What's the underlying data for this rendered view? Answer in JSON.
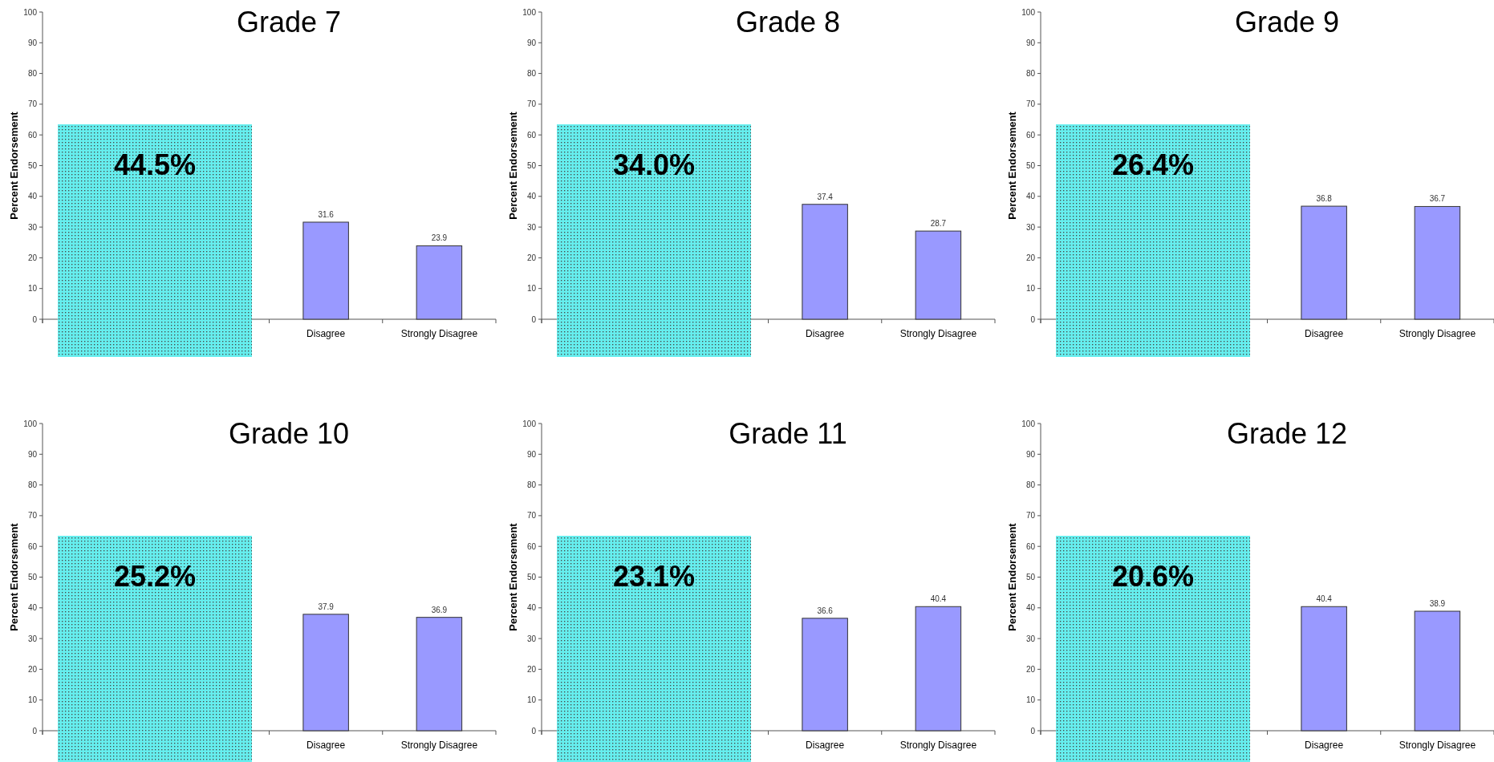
{
  "chart_data": [
    {
      "type": "bar",
      "title": "Grade 7",
      "ylabel": "Percent Endorsement",
      "categories": [
        null,
        null,
        "Disagree",
        "Strongly Disagree"
      ],
      "values": [
        null,
        null,
        31.6,
        23.9
      ],
      "color": "#9999ff",
      "ylim": [
        0,
        100
      ],
      "yticks": [
        0,
        10,
        20,
        30,
        40,
        50,
        60,
        70,
        80,
        90,
        100
      ],
      "data_labels": true,
      "grid": false,
      "annotations": [
        "44.5%"
      ]
    },
    {
      "type": "bar",
      "title": "Grade 8",
      "ylabel": "Percent Endorsement",
      "categories": [
        null,
        null,
        "Disagree",
        "Strongly Disagree"
      ],
      "values": [
        null,
        null,
        37.4,
        28.7
      ],
      "color": "#9999ff",
      "ylim": [
        0,
        100
      ],
      "yticks": [
        0,
        10,
        20,
        30,
        40,
        50,
        60,
        70,
        80,
        90,
        100
      ],
      "data_labels": true,
      "grid": false,
      "annotations": [
        "34.0%"
      ]
    },
    {
      "type": "bar",
      "title": "Grade 9",
      "ylabel": "Percent Endorsement",
      "categories": [
        null,
        null,
        "Disagree",
        "Strongly Disagree"
      ],
      "values": [
        null,
        null,
        36.8,
        36.7
      ],
      "color": "#9999ff",
      "ylim": [
        0,
        100
      ],
      "yticks": [
        0,
        10,
        20,
        30,
        40,
        50,
        60,
        70,
        80,
        90,
        100
      ],
      "data_labels": true,
      "grid": false,
      "annotations": [
        "26.4%"
      ]
    },
    {
      "type": "bar",
      "title": "Grade 10",
      "ylabel": "Percent Endorsement",
      "categories": [
        null,
        null,
        "Disagree",
        "Strongly Disagree"
      ],
      "values": [
        null,
        null,
        37.9,
        36.9
      ],
      "color": "#9999ff",
      "ylim": [
        0,
        100
      ],
      "yticks": [
        0,
        10,
        20,
        30,
        40,
        50,
        60,
        70,
        80,
        90,
        100
      ],
      "data_labels": true,
      "grid": false,
      "annotations": [
        "25.2%"
      ]
    },
    {
      "type": "bar",
      "title": "Grade 11",
      "ylabel": "Percent Endorsement",
      "categories": [
        null,
        null,
        "Disagree",
        "Strongly Disagree"
      ],
      "values": [
        null,
        null,
        36.6,
        40.4
      ],
      "color": "#9999ff",
      "ylim": [
        0,
        100
      ],
      "yticks": [
        0,
        10,
        20,
        30,
        40,
        50,
        60,
        70,
        80,
        90,
        100
      ],
      "data_labels": true,
      "grid": false,
      "annotations": [
        "23.1%"
      ]
    },
    {
      "type": "bar",
      "title": "Grade 12",
      "ylabel": "Percent Endorsement",
      "categories": [
        null,
        null,
        "Disagree",
        "Strongly Disagree"
      ],
      "values": [
        null,
        null,
        40.4,
        38.9
      ],
      "color": "#9999ff",
      "ylim": [
        0,
        100
      ],
      "yticks": [
        0,
        10,
        20,
        30,
        40,
        50,
        60,
        70,
        80,
        90,
        100
      ],
      "data_labels": true,
      "grid": false,
      "annotations": [
        "20.6%"
      ]
    }
  ]
}
